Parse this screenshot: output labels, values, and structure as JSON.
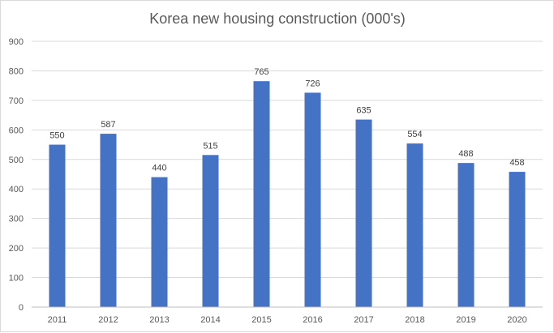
{
  "chart_data": {
    "type": "bar",
    "title": "Korea new housing construction (000's)",
    "xlabel": "",
    "ylabel": "",
    "categories": [
      "2011",
      "2012",
      "2013",
      "2014",
      "2015",
      "2016",
      "2017",
      "2018",
      "2019",
      "2020"
    ],
    "values": [
      550,
      587,
      440,
      515,
      765,
      726,
      635,
      554,
      488,
      458
    ],
    "ylim": [
      0,
      900
    ],
    "yticks": [
      0,
      100,
      200,
      300,
      400,
      500,
      600,
      700,
      800,
      900
    ],
    "grid": true,
    "legend": "none",
    "bar_color": "#4472c4"
  }
}
